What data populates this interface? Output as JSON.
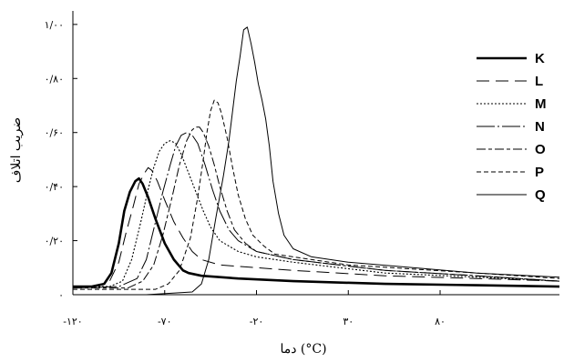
{
  "chart_data": {
    "type": "line",
    "title": "",
    "xlabel": "دما (°C)",
    "ylabel": "ضریب اتلاف",
    "xlim": [
      -120,
      145
    ],
    "ylim": [
      0,
      1.05
    ],
    "x_ticks": [
      {
        "value": -120,
        "label": "-۱۲۰"
      },
      {
        "value": -70,
        "label": "-۷۰"
      },
      {
        "value": -20,
        "label": "-۲۰"
      },
      {
        "value": 30,
        "label": "۳۰"
      },
      {
        "value": 80,
        "label": "۸۰"
      }
    ],
    "y_ticks": [
      {
        "value": 0,
        "label": "۰"
      },
      {
        "value": 0.2,
        "label": "۰/۲۰"
      },
      {
        "value": 0.4,
        "label": "۰/۴۰"
      },
      {
        "value": 0.6,
        "label": "۰/۶۰"
      },
      {
        "value": 0.8,
        "label": "۰/۸۰"
      },
      {
        "value": 1.0,
        "label": "۱/۰۰"
      }
    ],
    "grid": false,
    "legend_position": "top-right",
    "series": [
      {
        "name": "K",
        "style": "thick-solid",
        "x": [
          -120,
          -110,
          -103,
          -99,
          -95,
          -92,
          -89,
          -86,
          -84,
          -82,
          -79,
          -75,
          -70,
          -65,
          -60,
          -57,
          -50,
          -30,
          0,
          50,
          100,
          145
        ],
        "y": [
          0.03,
          0.03,
          0.04,
          0.08,
          0.19,
          0.31,
          0.38,
          0.42,
          0.43,
          0.41,
          0.36,
          0.28,
          0.19,
          0.13,
          0.09,
          0.08,
          0.07,
          0.06,
          0.05,
          0.04,
          0.035,
          0.03
        ]
      },
      {
        "name": "L",
        "style": "long-dash",
        "x": [
          -120,
          -107,
          -100,
          -95,
          -91,
          -87,
          -84,
          -81,
          -79,
          -77,
          -74,
          -70,
          -65,
          -60,
          -55,
          -50,
          -40,
          -20,
          0,
          50,
          100,
          145
        ],
        "y": [
          0.03,
          0.03,
          0.05,
          0.12,
          0.23,
          0.33,
          0.41,
          0.45,
          0.47,
          0.46,
          0.42,
          0.35,
          0.27,
          0.21,
          0.16,
          0.13,
          0.11,
          0.1,
          0.09,
          0.07,
          0.06,
          0.05
        ]
      },
      {
        "name": "M",
        "style": "dotted",
        "x": [
          -120,
          -100,
          -93,
          -88,
          -83,
          -79,
          -76,
          -73,
          -70,
          -67,
          -64,
          -61,
          -57,
          -53,
          -49,
          -45,
          -40,
          -30,
          -20,
          0,
          50,
          100,
          145
        ],
        "y": [
          0.03,
          0.03,
          0.05,
          0.13,
          0.27,
          0.39,
          0.47,
          0.53,
          0.56,
          0.57,
          0.56,
          0.52,
          0.45,
          0.38,
          0.31,
          0.25,
          0.2,
          0.16,
          0.14,
          0.12,
          0.08,
          0.065,
          0.05
        ]
      },
      {
        "name": "N",
        "style": "long-short",
        "x": [
          -120,
          -95,
          -85,
          -80,
          -75,
          -71,
          -67,
          -64,
          -61,
          -58,
          -55,
          -52,
          -48,
          -44,
          -40,
          -35,
          -30,
          -20,
          0,
          50,
          100,
          145
        ],
        "y": [
          0.025,
          0.03,
          0.06,
          0.13,
          0.27,
          0.38,
          0.48,
          0.55,
          0.59,
          0.6,
          0.59,
          0.56,
          0.48,
          0.39,
          0.31,
          0.24,
          0.2,
          0.16,
          0.13,
          0.09,
          0.07,
          0.05
        ]
      },
      {
        "name": "O",
        "style": "dash-dot",
        "x": [
          -120,
          -90,
          -82,
          -76,
          -71,
          -66,
          -62,
          -58,
          -55,
          -53,
          -51,
          -49,
          -46,
          -43,
          -40,
          -36,
          -32,
          -26,
          -20,
          0,
          50,
          100,
          145
        ],
        "y": [
          0.025,
          0.025,
          0.05,
          0.11,
          0.22,
          0.36,
          0.48,
          0.57,
          0.61,
          0.62,
          0.62,
          0.6,
          0.55,
          0.48,
          0.4,
          0.31,
          0.24,
          0.19,
          0.16,
          0.13,
          0.09,
          0.07,
          0.05
        ]
      },
      {
        "name": "P",
        "style": "short-dash",
        "x": [
          -120,
          -75,
          -68,
          -62,
          -56,
          -52,
          -49,
          -47,
          -45,
          -43,
          -41,
          -39,
          -36,
          -33,
          -30,
          -26,
          -22,
          -16,
          -10,
          0,
          30,
          100,
          145
        ],
        "y": [
          0.02,
          0.02,
          0.04,
          0.09,
          0.21,
          0.36,
          0.5,
          0.6,
          0.68,
          0.72,
          0.71,
          0.67,
          0.58,
          0.47,
          0.37,
          0.28,
          0.22,
          0.18,
          0.15,
          0.14,
          0.11,
          0.08,
          0.06
        ]
      },
      {
        "name": "Q",
        "style": "thin-solid",
        "x": [
          -120,
          -80,
          -55,
          -50,
          -46,
          -42,
          -38,
          -35,
          -33,
          -31,
          -29,
          -27,
          -25,
          -23,
          -21,
          -19,
          -17,
          -15,
          -13,
          -11,
          -8,
          -5,
          0,
          10,
          30,
          100,
          145
        ],
        "y": [
          0,
          0,
          0.01,
          0.04,
          0.13,
          0.29,
          0.44,
          0.57,
          0.68,
          0.79,
          0.88,
          0.98,
          0.99,
          0.93,
          0.86,
          0.78,
          0.72,
          0.65,
          0.55,
          0.42,
          0.3,
          0.22,
          0.17,
          0.14,
          0.12,
          0.08,
          0.065
        ]
      }
    ]
  }
}
